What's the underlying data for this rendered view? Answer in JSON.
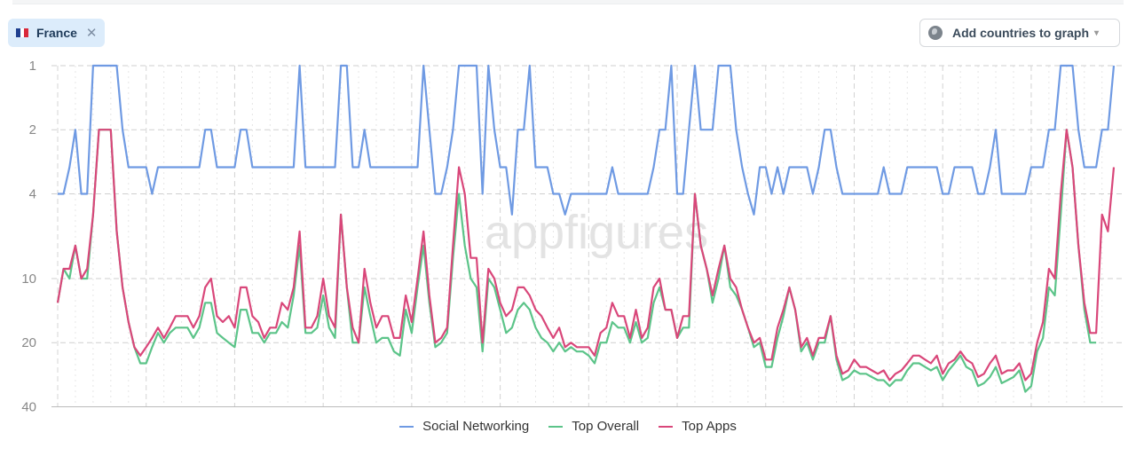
{
  "country_chip": {
    "label": "France",
    "close_icon": "close-icon",
    "flag_colors": [
      "#1f3f8f",
      "#ffffff",
      "#d9283a"
    ]
  },
  "add_countries": {
    "label": "Add countries to graph",
    "icon": "globe-icon",
    "caret": "▾"
  },
  "watermark": "appfigures",
  "colors": {
    "Social Networking": "#6f9ae3",
    "Top Overall": "#5cc489",
    "Top Apps": "#d9477a"
  },
  "chart_data": {
    "type": "line",
    "y_scale": "log",
    "y_inverted": true,
    "ylim": [
      1,
      40
    ],
    "yticks": [
      "1",
      "2",
      "4",
      "10",
      "20",
      "40"
    ],
    "grid": true,
    "legend_position": "bottom",
    "series": [
      {
        "name": "Social Networking",
        "values": [
          4,
          4,
          3,
          2,
          4,
          4,
          1,
          1,
          1,
          1,
          1,
          2,
          3,
          3,
          3,
          3,
          4,
          3,
          3,
          3,
          3,
          3,
          3,
          3,
          3,
          2,
          2,
          3,
          3,
          3,
          3,
          2,
          2,
          3,
          3,
          3,
          3,
          3,
          3,
          3,
          3,
          1,
          3,
          3,
          3,
          3,
          3,
          3,
          1,
          1,
          3,
          3,
          2,
          3,
          3,
          3,
          3,
          3,
          3,
          3,
          3,
          3,
          1,
          2,
          4,
          4,
          3,
          2,
          1,
          1,
          1,
          1,
          4,
          1,
          2,
          3,
          3,
          5,
          2,
          2,
          1,
          3,
          3,
          3,
          4,
          4,
          5,
          4,
          4,
          4,
          4,
          4,
          4,
          4,
          3,
          4,
          4,
          4,
          4,
          4,
          4,
          3,
          2,
          2,
          1,
          4,
          4,
          2,
          1,
          2,
          2,
          2,
          1,
          1,
          1,
          2,
          3,
          4,
          5,
          3,
          3,
          4,
          3,
          4,
          3,
          3,
          3,
          3,
          4,
          3,
          2,
          2,
          3,
          4,
          4,
          4,
          4,
          4,
          4,
          4,
          3,
          4,
          4,
          4,
          3,
          3,
          3,
          3,
          3,
          3,
          4,
          4,
          3,
          3,
          3,
          3,
          4,
          4,
          3,
          2,
          4,
          4,
          4,
          4,
          4,
          3,
          3,
          3,
          2,
          2,
          1,
          1,
          1,
          2,
          3,
          3,
          3,
          2,
          2,
          1
        ]
      },
      {
        "name": "Top Overall",
        "values": [
          13,
          9,
          10,
          7,
          10,
          10,
          5,
          2,
          2,
          2,
          6,
          11,
          16,
          21,
          25,
          25,
          21,
          18,
          20,
          18,
          17,
          17,
          17,
          19,
          17,
          13,
          13,
          18,
          19,
          20,
          21,
          14,
          14,
          18,
          18,
          20,
          18,
          18,
          16,
          17,
          12,
          7,
          18,
          18,
          17,
          12,
          17,
          19,
          5,
          11,
          20,
          20,
          11,
          15,
          20,
          19,
          19,
          22,
          23,
          14,
          18,
          11,
          7,
          13,
          21,
          20,
          18,
          8,
          4,
          7,
          10,
          11,
          22,
          10,
          11,
          14,
          18,
          17,
          14,
          13,
          14,
          17,
          19,
          20,
          22,
          20,
          22,
          21,
          22,
          22,
          23,
          25,
          20,
          20,
          16,
          17,
          17,
          20,
          16,
          20,
          19,
          13,
          11,
          14,
          14,
          19,
          17,
          17,
          4,
          7,
          9,
          13,
          10,
          7,
          11,
          12,
          14,
          17,
          21,
          20,
          26,
          26,
          19,
          15,
          11,
          14,
          22,
          20,
          24,
          20,
          20,
          15,
          24,
          30,
          29,
          27,
          28,
          28,
          29,
          30,
          30,
          32,
          30,
          30,
          27,
          25,
          25,
          26,
          27,
          26,
          30,
          27,
          25,
          23,
          26,
          27,
          32,
          31,
          29,
          26,
          31,
          30,
          29,
          27,
          34,
          32,
          22,
          19,
          11,
          12,
          5,
          2,
          3,
          7,
          14,
          20,
          20,
          null,
          null,
          null
        ]
      },
      {
        "name": "Top Apps",
        "values": [
          13,
          9,
          9,
          7,
          10,
          9,
          5,
          2,
          2,
          2,
          6,
          11,
          16,
          21,
          23,
          21,
          19,
          17,
          19,
          17,
          15,
          15,
          15,
          17,
          15,
          11,
          10,
          15,
          16,
          15,
          17,
          11,
          11,
          15,
          16,
          19,
          17,
          17,
          13,
          14,
          11,
          6,
          17,
          17,
          15,
          10,
          15,
          17,
          5,
          11,
          17,
          20,
          9,
          13,
          17,
          15,
          15,
          19,
          19,
          12,
          16,
          10,
          6,
          12,
          20,
          19,
          17,
          7,
          3,
          4,
          8,
          8,
          20,
          9,
          10,
          13,
          15,
          14,
          11,
          11,
          12,
          14,
          15,
          17,
          19,
          17,
          21,
          20,
          21,
          21,
          21,
          23,
          18,
          17,
          13,
          15,
          15,
          19,
          14,
          19,
          17,
          11,
          10,
          14,
          14,
          19,
          15,
          15,
          4,
          7,
          9,
          12,
          9,
          7,
          10,
          11,
          14,
          17,
          20,
          19,
          24,
          24,
          17,
          14,
          11,
          14,
          21,
          19,
          23,
          19,
          19,
          15,
          23,
          28,
          27,
          24,
          26,
          26,
          27,
          28,
          27,
          30,
          28,
          27,
          25,
          23,
          23,
          24,
          25,
          23,
          28,
          25,
          24,
          22,
          24,
          25,
          29,
          28,
          25,
          23,
          28,
          27,
          27,
          25,
          30,
          28,
          20,
          16,
          9,
          10,
          4,
          2,
          3,
          7,
          13,
          18,
          18,
          5,
          6,
          3
        ]
      }
    ]
  }
}
